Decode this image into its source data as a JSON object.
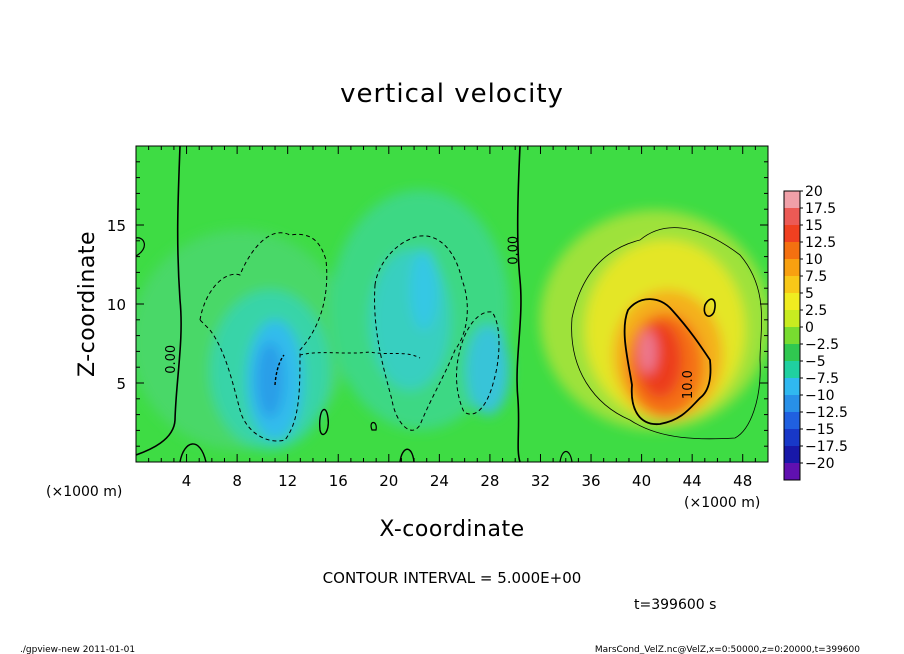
{
  "chart_data": {
    "type": "heatmap",
    "title": "vertical velocity",
    "xlabel": "X-coordinate",
    "ylabel": "Z-coordinate",
    "x_unit_left": "(×1000 m)",
    "x_unit_right": "(×1000 m)",
    "xlim": [
      0,
      50
    ],
    "ylim": [
      0,
      20
    ],
    "x_ticks": [
      4,
      8,
      12,
      16,
      20,
      24,
      28,
      32,
      36,
      40,
      44,
      48
    ],
    "y_ticks": [
      5,
      10,
      15
    ],
    "colorbar": {
      "levels": [
        20,
        17.5,
        15,
        12.5,
        10,
        7.5,
        5,
        2.5,
        0,
        -2.5,
        -5,
        -7.5,
        -10,
        -12.5,
        -15,
        -17.5,
        -20
      ],
      "labels": [
        "20",
        "17.5",
        "15",
        "12.5",
        "10",
        "7.5",
        "5",
        "2.5",
        "0",
        "−2.5",
        "−5",
        "−7.5",
        "−10",
        "−12.5",
        "−15",
        "−17.5",
        "−20"
      ],
      "colors": [
        "#f0a0a8",
        "#ec5a55",
        "#f04020",
        "#f47010",
        "#f8a010",
        "#f8c818",
        "#f0ec20",
        "#c8ec20",
        "#78dc30",
        "#30c850",
        "#20d0a0",
        "#30b8f0",
        "#2890e8",
        "#2060e0",
        "#1838c8",
        "#1818a8",
        "#6010b0"
      ]
    },
    "contour_labels": [
      {
        "text": "0.00",
        "x": 3.1,
        "z": 6.5
      },
      {
        "text": "0.00",
        "x": 30.2,
        "z": 13.4
      },
      {
        "text": "10.0",
        "x": 44.0,
        "z": 4.9
      }
    ],
    "contour_interval": "CONTOUR INTERVAL = 5.000E+00",
    "time": "t=399600 s"
  },
  "footer": {
    "left": "./gpview-new  2011-01-01",
    "right": "MarsCond_VelZ.nc@VelZ,x=0:50000,z=0:20000,t=399600"
  }
}
